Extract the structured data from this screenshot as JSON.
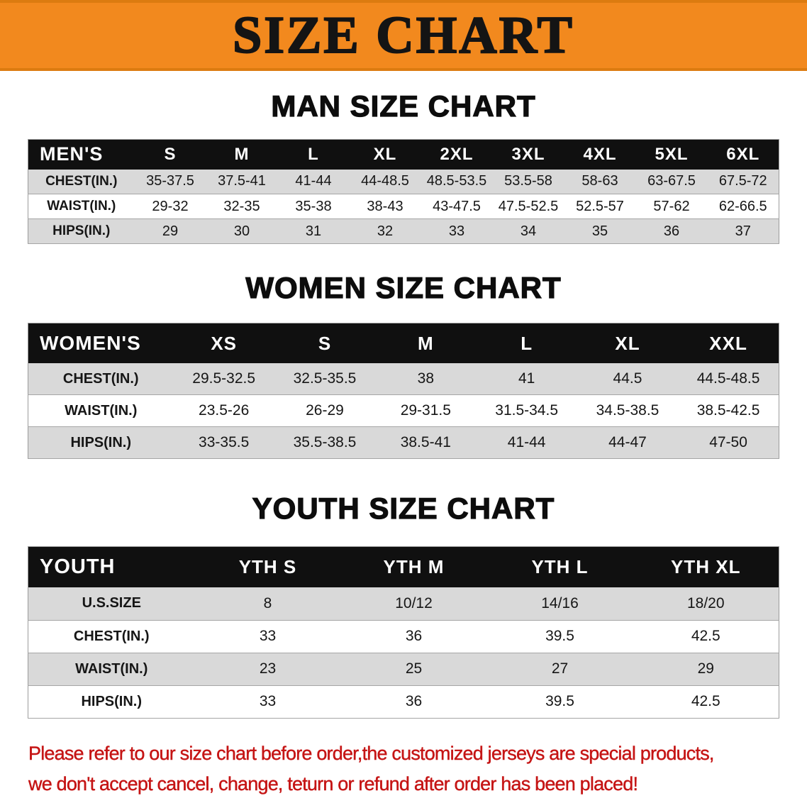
{
  "banner": {
    "title": "SIZE CHART"
  },
  "sections": [
    {
      "id": "men",
      "heading": "MAN SIZE CHART",
      "table": {
        "header": [
          "MEN'S",
          "S",
          "M",
          "L",
          "XL",
          "2XL",
          "3XL",
          "4XL",
          "5XL",
          "6XL"
        ],
        "rows": [
          [
            "CHEST(IN.)",
            "35-37.5",
            "37.5-41",
            "41-44",
            "44-48.5",
            "48.5-53.5",
            "53.5-58",
            "58-63",
            "63-67.5",
            "67.5-72"
          ],
          [
            "WAIST(IN.)",
            "29-32",
            "32-35",
            "35-38",
            "38-43",
            "43-47.5",
            "47.5-52.5",
            "52.5-57",
            "57-62",
            "62-66.5"
          ],
          [
            "HIPS(IN.)",
            "29",
            "30",
            "31",
            "32",
            "33",
            "34",
            "35",
            "36",
            "37"
          ]
        ]
      }
    },
    {
      "id": "women",
      "heading": "WOMEN SIZE CHART",
      "table": {
        "header": [
          "WOMEN'S",
          "XS",
          "S",
          "M",
          "L",
          "XL",
          "XXL"
        ],
        "rows": [
          [
            "CHEST(IN.)",
            "29.5-32.5",
            "32.5-35.5",
            "38",
            "41",
            "44.5",
            "44.5-48.5"
          ],
          [
            "WAIST(IN.)",
            "23.5-26",
            "26-29",
            "29-31.5",
            "31.5-34.5",
            "34.5-38.5",
            "38.5-42.5"
          ],
          [
            "HIPS(IN.)",
            "33-35.5",
            "35.5-38.5",
            "38.5-41",
            "41-44",
            "44-47",
            "47-50"
          ]
        ]
      }
    },
    {
      "id": "youth",
      "heading": "YOUTH SIZE CHART",
      "table": {
        "header": [
          "YOUTH",
          "YTH S",
          "YTH M",
          "YTH L",
          "YTH XL"
        ],
        "rows": [
          [
            "U.S.SIZE",
            "8",
            "10/12",
            "14/16",
            "18/20"
          ],
          [
            "CHEST(IN.)",
            "33",
            "36",
            "39.5",
            "42.5"
          ],
          [
            "WAIST(IN.)",
            "23",
            "25",
            "27",
            "29"
          ],
          [
            "HIPS(IN.)",
            "33",
            "36",
            "39.5",
            "42.5"
          ]
        ]
      }
    }
  ],
  "footer": {
    "line1": "Please refer to our size chart before order,the customized jerseys are special products,",
    "line2": "we don't accept cancel, change, teturn or refund after order has been placed!"
  },
  "colors": {
    "banner_orange": "#F2891E",
    "table_header_bg": "#101010",
    "row_shade_gray": "#D9D9D9",
    "footer_red": "#C51414"
  }
}
